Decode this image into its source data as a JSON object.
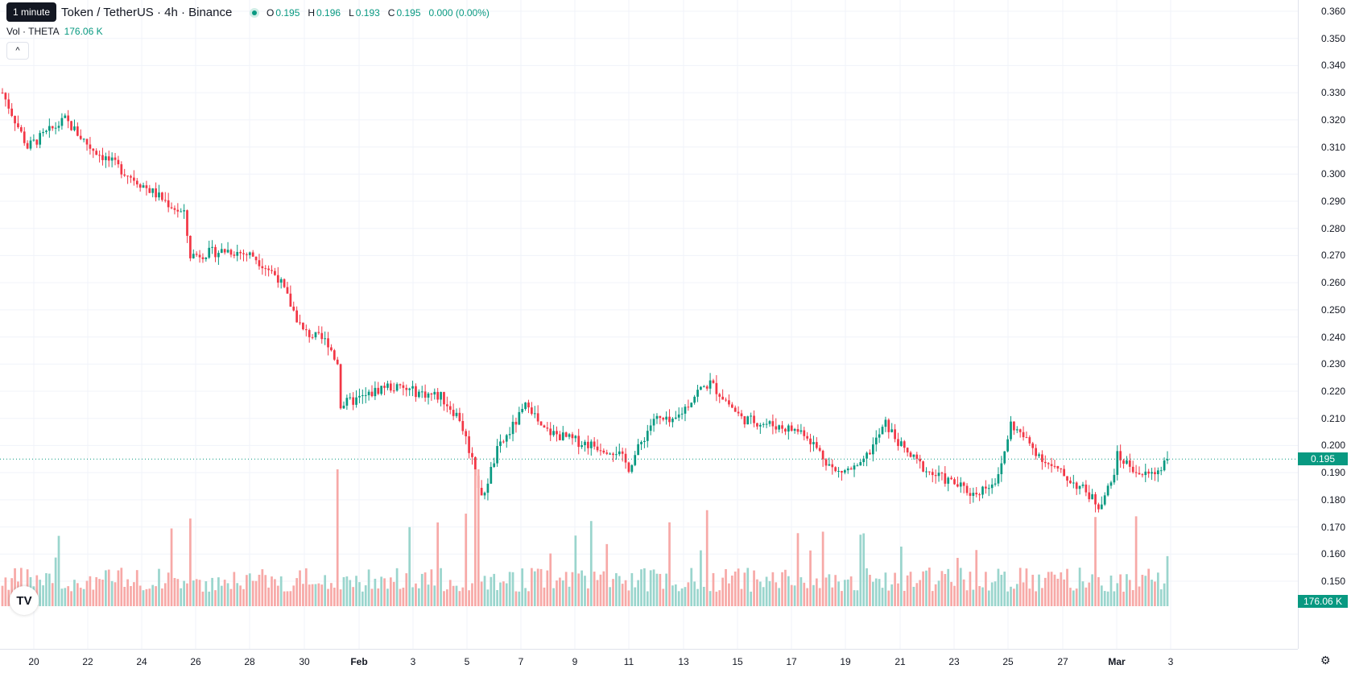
{
  "tooltip": "1 minute",
  "symbol": {
    "title": "Token / TetherUS · 4h · Binance",
    "ohlc": [
      {
        "k": "O",
        "v": "0.195"
      },
      {
        "k": "H",
        "v": "0.196"
      },
      {
        "k": "L",
        "v": "0.193"
      },
      {
        "k": "C",
        "v": "0.195"
      },
      {
        "k": "",
        "v": "0.000 (0.00%)"
      }
    ]
  },
  "volume": {
    "label": "Vol · THETA",
    "value": "176.06 K"
  },
  "price_axis": {
    "current_price": "0.195",
    "current_volume": "176.06 K"
  },
  "colors": {
    "up": "#089981",
    "down": "#f23645",
    "up_vol": "#9ad5cd",
    "down_vol": "#f7a9a7",
    "grid": "#f0f3fa"
  },
  "icons": {
    "collapse": "chevron-up-icon",
    "logo": "tradingview-logo-icon",
    "settings": "gear-icon"
  },
  "chart_data": {
    "type": "candlestick",
    "ylim": [
      0.142,
      0.362
    ],
    "y_ticks": [
      "0.360",
      "0.350",
      "0.340",
      "0.330",
      "0.320",
      "0.310",
      "0.300",
      "0.290",
      "0.280",
      "0.270",
      "0.260",
      "0.250",
      "0.240",
      "0.230",
      "0.220",
      "0.210",
      "0.200",
      "0.190",
      "0.180",
      "0.170",
      "0.160",
      "0.150"
    ],
    "x_ticks": [
      {
        "label": "20"
      },
      {
        "label": "22"
      },
      {
        "label": "24"
      },
      {
        "label": "26"
      },
      {
        "label": "28"
      },
      {
        "label": "30"
      },
      {
        "label": "Feb",
        "bold": true
      },
      {
        "label": "3"
      },
      {
        "label": "5"
      },
      {
        "label": "7"
      },
      {
        "label": "9"
      },
      {
        "label": "11"
      },
      {
        "label": "13"
      },
      {
        "label": "15"
      },
      {
        "label": "17"
      },
      {
        "label": "19"
      },
      {
        "label": "21"
      },
      {
        "label": "23"
      },
      {
        "label": "25"
      },
      {
        "label": "27"
      },
      {
        "label": "Mar",
        "bold": true
      },
      {
        "label": "3"
      }
    ],
    "series_keypoints": [
      [
        0,
        0.33
      ],
      [
        8,
        0.31
      ],
      [
        20,
        0.32
      ],
      [
        28,
        0.31
      ],
      [
        40,
        0.3
      ],
      [
        58,
        0.285
      ],
      [
        60,
        0.27
      ],
      [
        72,
        0.272
      ],
      [
        80,
        0.27
      ],
      [
        88,
        0.262
      ],
      [
        96,
        0.242
      ],
      [
        104,
        0.238
      ],
      [
        107,
        0.23
      ],
      [
        108,
        0.215
      ],
      [
        116,
        0.218
      ],
      [
        122,
        0.222
      ],
      [
        140,
        0.218
      ],
      [
        146,
        0.21
      ],
      [
        150,
        0.195
      ],
      [
        153,
        0.18
      ],
      [
        158,
        0.198
      ],
      [
        168,
        0.216
      ],
      [
        172,
        0.206
      ],
      [
        182,
        0.202
      ],
      [
        196,
        0.198
      ],
      [
        200,
        0.192
      ],
      [
        208,
        0.21
      ],
      [
        214,
        0.208
      ],
      [
        222,
        0.22
      ],
      [
        226,
        0.223
      ],
      [
        230,
        0.218
      ],
      [
        236,
        0.21
      ],
      [
        244,
        0.208
      ],
      [
        256,
        0.205
      ],
      [
        266,
        0.19
      ],
      [
        274,
        0.192
      ],
      [
        282,
        0.208
      ],
      [
        288,
        0.198
      ],
      [
        296,
        0.19
      ],
      [
        304,
        0.186
      ],
      [
        310,
        0.182
      ],
      [
        318,
        0.188
      ],
      [
        322,
        0.208
      ],
      [
        334,
        0.193
      ],
      [
        340,
        0.188
      ],
      [
        346,
        0.183
      ],
      [
        350,
        0.178
      ],
      [
        354,
        0.186
      ],
      [
        356,
        0.196
      ],
      [
        364,
        0.189
      ],
      [
        368,
        0.19
      ],
      [
        372,
        0.195
      ]
    ],
    "candle_count": 373
  }
}
